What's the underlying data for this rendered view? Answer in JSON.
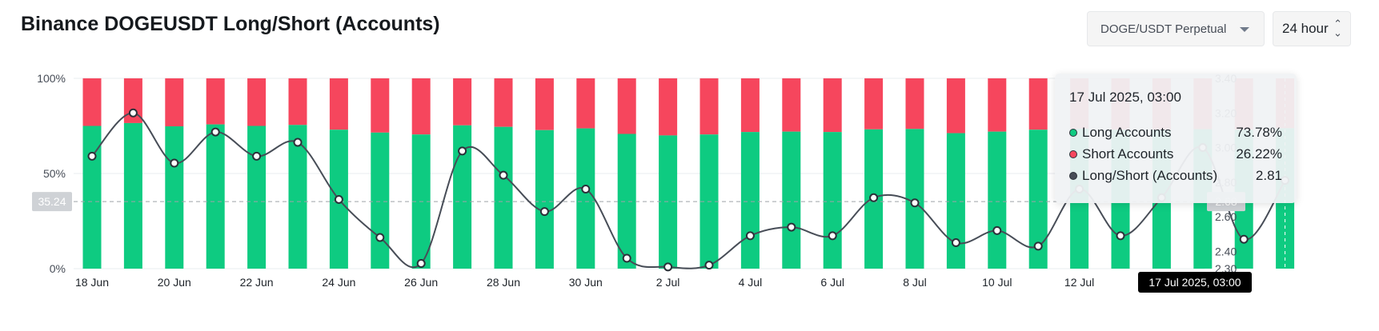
{
  "header": {
    "title": "Binance DOGEUSDT Long/Short (Accounts)",
    "market_select": "DOGE/USDT Perpetual",
    "period_select": "24 hour"
  },
  "colors": {
    "long": "#0ecb81",
    "short": "#f6465d",
    "ratio_line": "#474d57",
    "crosshair_label_bg": "#cfd2d6"
  },
  "tooltip": {
    "time": "17 Jul 2025, 03:00",
    "rows": [
      {
        "label": "Long Accounts",
        "value": "73.78%"
      },
      {
        "label": "Short Accounts",
        "value": "26.22%"
      },
      {
        "label": "Long/Short (Accounts)",
        "value": "2.81"
      }
    ]
  },
  "crosshair": {
    "left_value": "35.24",
    "right_value": "2.68",
    "x_label": "17 Jul 2025, 03:00"
  },
  "chart_data": {
    "type": "bar",
    "title": "Binance DOGEUSDT Long/Short (Accounts)",
    "categories": [
      "18 Jun",
      "19 Jun",
      "20 Jun",
      "21 Jun",
      "22 Jun",
      "23 Jun",
      "24 Jun",
      "25 Jun",
      "26 Jun",
      "27 Jun",
      "28 Jun",
      "29 Jun",
      "30 Jun",
      "1 Jul",
      "2 Jul",
      "3 Jul",
      "4 Jul",
      "5 Jul",
      "6 Jul",
      "7 Jul",
      "8 Jul",
      "9 Jul",
      "10 Jul",
      "11 Jul",
      "12 Jul",
      "13 Jul",
      "14 Jul",
      "15 Jul",
      "16 Jul",
      "17 Jul"
    ],
    "x_tick_labels": [
      "18 Jun",
      "20 Jun",
      "22 Jun",
      "24 Jun",
      "26 Jun",
      "28 Jun",
      "30 Jun",
      "2 Jul",
      "4 Jul",
      "6 Jul",
      "8 Jul",
      "10 Jul",
      "12 Jul",
      "14 Jul"
    ],
    "series": [
      {
        "name": "Long Accounts",
        "axis": "left",
        "unit": "%",
        "values": [
          75.0,
          76.5,
          74.8,
          75.8,
          75.0,
          75.5,
          73.0,
          71.5,
          70.5,
          75.3,
          74.5,
          72.8,
          73.7,
          70.8,
          70.0,
          70.5,
          71.8,
          72.0,
          71.8,
          73.2,
          73.4,
          71.2,
          72.0,
          73.0,
          73.5,
          73.0,
          73.0,
          73.3,
          73.0,
          73.78
        ]
      },
      {
        "name": "Short Accounts",
        "axis": "left",
        "unit": "%",
        "values": [
          25.0,
          23.5,
          25.2,
          24.2,
          25.0,
          24.5,
          27.0,
          28.5,
          29.5,
          24.7,
          25.5,
          27.2,
          26.3,
          29.2,
          30.0,
          29.5,
          28.2,
          28.0,
          28.2,
          26.8,
          26.6,
          28.8,
          28.0,
          27.0,
          26.5,
          27.0,
          27.0,
          26.7,
          27.0,
          26.22
        ]
      },
      {
        "name": "Long/Short (Accounts)",
        "axis": "right",
        "type": "line",
        "values": [
          2.95,
          3.2,
          2.91,
          3.09,
          2.95,
          3.03,
          2.7,
          2.48,
          2.33,
          2.98,
          2.84,
          2.63,
          2.76,
          2.36,
          2.31,
          2.32,
          2.49,
          2.54,
          2.49,
          2.71,
          2.68,
          2.45,
          2.52,
          2.43,
          2.76,
          2.49,
          2.71,
          3.0,
          2.47,
          2.81
        ]
      }
    ],
    "left_axis": {
      "ticks": [
        "0%",
        "50%",
        "100%"
      ],
      "range": [
        0,
        100
      ]
    },
    "right_axis": {
      "ticks": [
        "2.30",
        "2.40",
        "2.60",
        "2.80",
        "3.00",
        "3.20",
        "3.40"
      ],
      "range": [
        2.3,
        3.4
      ]
    },
    "grid": true,
    "legend": "tooltip"
  }
}
